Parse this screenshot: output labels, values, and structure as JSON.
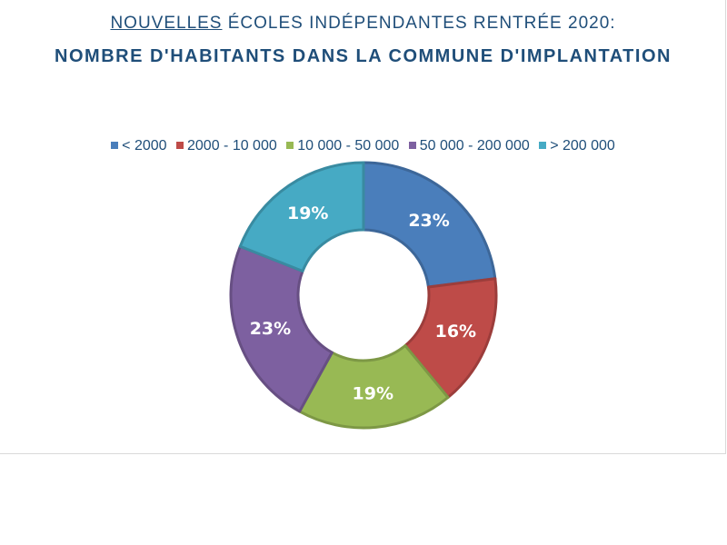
{
  "chart_data": {
    "type": "pie",
    "donut": true,
    "title": {
      "line1_underlined": "NOUVELLES",
      "line1_rest": " ÉCOLES INDÉPENDANTES RENTRÉE 2020:",
      "line2": "NOMBRE D'HABITANTS DANS LA COMMUNE D'IMPLANTATION"
    },
    "categories": [
      "< 2000",
      "2000 - 10 000",
      "10 000 - 50 000",
      "50 000 - 200 000",
      "> 200 000"
    ],
    "values": [
      23,
      16,
      19,
      23,
      19
    ],
    "labels": [
      "23%",
      "16%",
      "19%",
      "23%",
      "19%"
    ],
    "colors": [
      "#4a7ebb",
      "#be4b48",
      "#98b954",
      "#7d60a0",
      "#46aac4"
    ],
    "legend_position": "top"
  }
}
